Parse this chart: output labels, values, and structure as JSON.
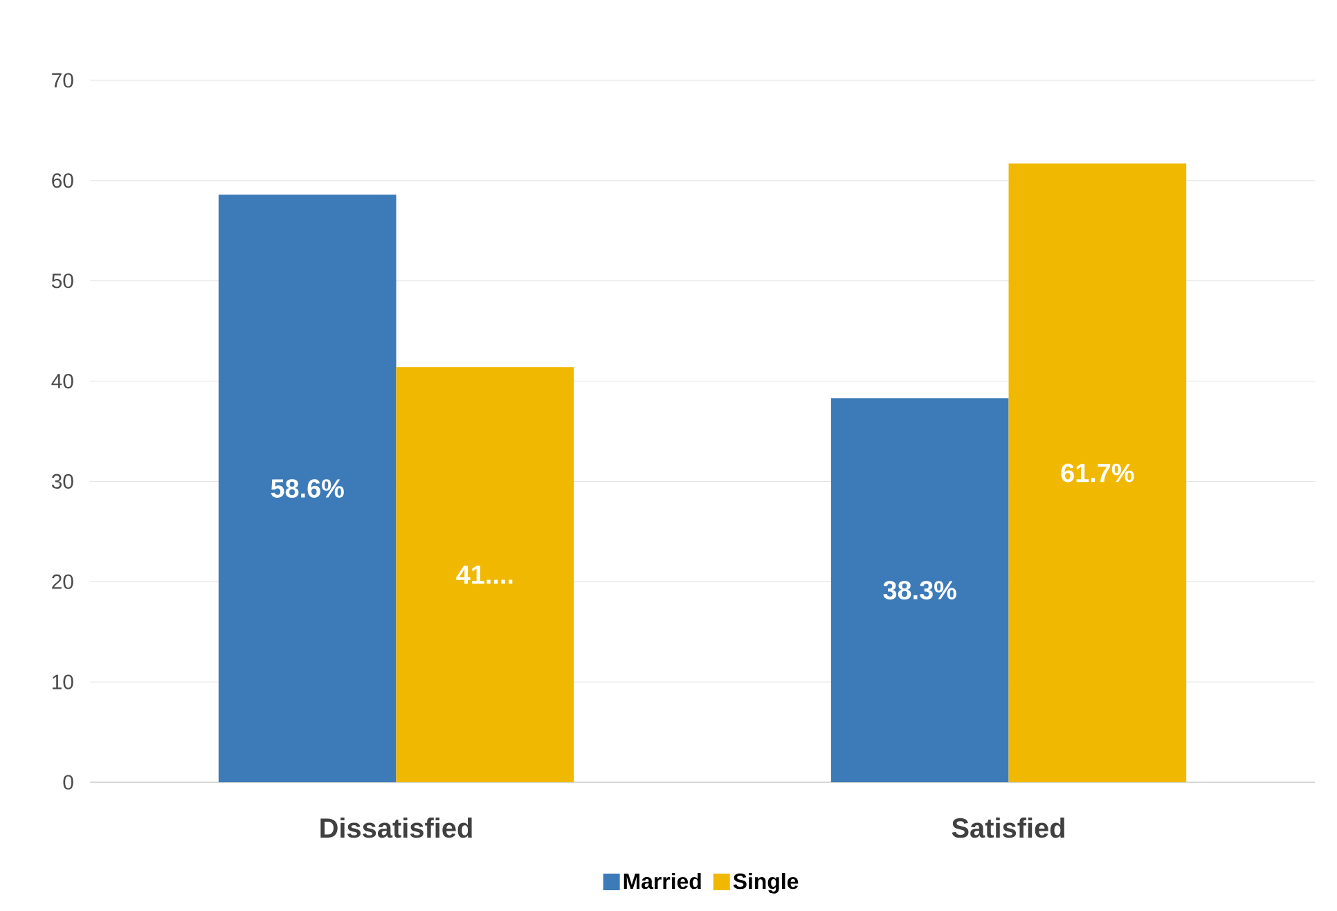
{
  "chart_data": {
    "type": "bar",
    "categories": [
      "Dissatisfied",
      "Satisfied"
    ],
    "series": [
      {
        "name": "Married",
        "color": "#3d7ab8",
        "values": [
          58.6,
          38.3
        ],
        "value_labels": [
          "58.6%",
          "38.3%"
        ]
      },
      {
        "name": "Single",
        "color": "#f0b800",
        "values": [
          41.4,
          61.7
        ],
        "value_labels": [
          "41....",
          "61.7%"
        ]
      }
    ],
    "ylim": [
      0,
      70
    ],
    "yticks": [
      0,
      10,
      20,
      30,
      40,
      50,
      60,
      70
    ],
    "grid": "y",
    "legend": "bottom"
  }
}
